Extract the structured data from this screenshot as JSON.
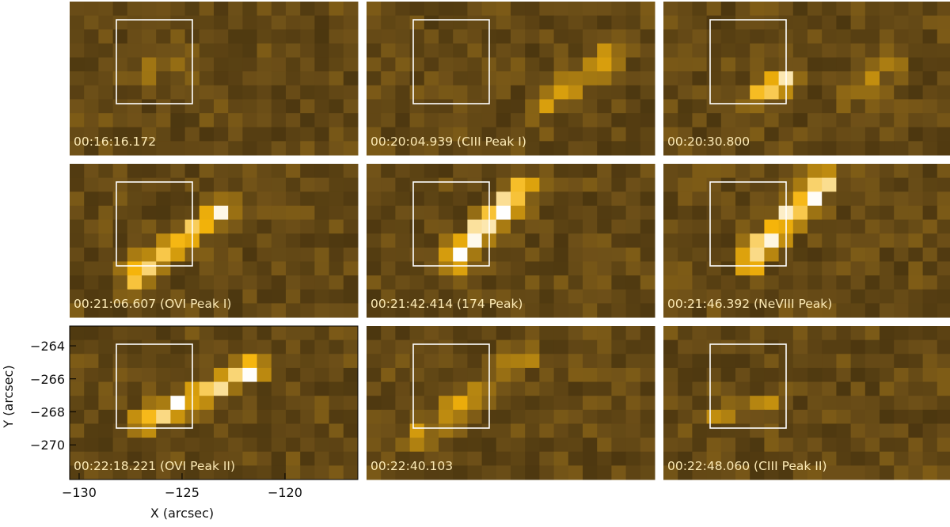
{
  "panels": [
    {
      "label": "00:16:16.172"
    },
    {
      "label": "00:20:04.939 (CIII Peak I)"
    },
    {
      "label": "00:20:30.800"
    },
    {
      "label": "00:21:06.607 (OVI Peak I)"
    },
    {
      "label": "00:21:42.414 (174 Peak)"
    },
    {
      "label": "00:21:46.392 (NeVIII Peak)"
    },
    {
      "label": "00:22:18.221 (OVI Peak II)"
    },
    {
      "label": "00:22:40.103"
    },
    {
      "label": "00:22:48.060 (CIII Peak II)"
    }
  ],
  "axes": {
    "xlabel": "X (arcsec)",
    "ylabel": "Y (arcsec)",
    "xlim": [
      -130.46,
      -116.46
    ],
    "ylim": [
      -272.1,
      -262.8
    ],
    "xticks": [
      {
        "value": -130,
        "label": "−130"
      },
      {
        "value": -125,
        "label": "−125"
      },
      {
        "value": -120,
        "label": "−120"
      }
    ],
    "yticks": [
      {
        "value": -264,
        "label": "−264"
      },
      {
        "value": -266,
        "label": "−266"
      },
      {
        "value": -268,
        "label": "−268"
      },
      {
        "value": -270,
        "label": "−270"
      }
    ]
  }
}
